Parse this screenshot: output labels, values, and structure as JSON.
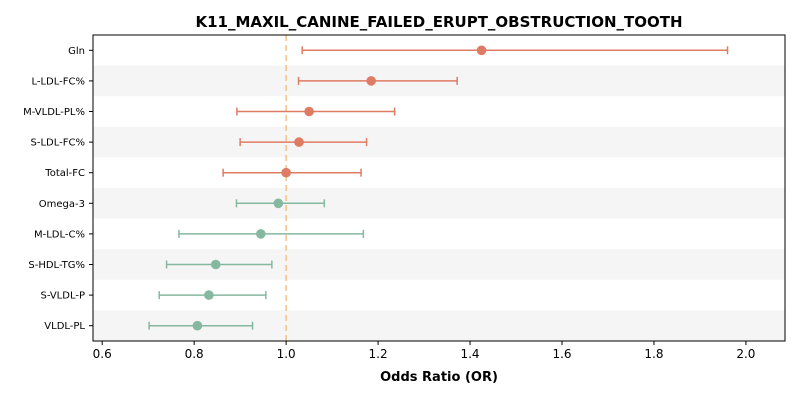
{
  "chart_data": {
    "type": "forest",
    "title": "K11_MAXIL_CANINE_FAILED_ERUPT_OBSTRUCTION_TOOTH",
    "xlabel": "Odds Ratio (OR)",
    "ylabel": "",
    "xlim": [
      0.58,
      2.085
    ],
    "xticks": [
      0.6,
      0.8,
      1.0,
      1.2,
      1.4,
      1.6,
      1.8,
      2.0
    ],
    "xtick_labels": [
      "0.6",
      "0.8",
      "1.0",
      "1.2",
      "1.4",
      "1.6",
      "1.8",
      "2.0"
    ],
    "reference_line": 1.0,
    "alternating_row_shading": true,
    "colors": {
      "risk": "#e07b63",
      "protective": "#86b8a0",
      "reference_line": "#f5c48a",
      "row_shade": "#f5f5f5"
    },
    "rows": [
      {
        "label": "Gln",
        "or": 1.425,
        "lower": 1.035,
        "upper": 1.96,
        "group": "risk"
      },
      {
        "label": "L-LDL-FC%",
        "or": 1.185,
        "lower": 1.027,
        "upper": 1.372,
        "group": "risk"
      },
      {
        "label": "M-VLDL-PL%",
        "or": 1.05,
        "lower": 0.893,
        "upper": 1.236,
        "group": "risk"
      },
      {
        "label": "S-LDL-FC%",
        "or": 1.028,
        "lower": 0.9,
        "upper": 1.175,
        "group": "risk"
      },
      {
        "label": "Total-FC",
        "or": 1.0,
        "lower": 0.863,
        "upper": 1.163,
        "group": "risk"
      },
      {
        "label": "Omega-3",
        "or": 0.983,
        "lower": 0.892,
        "upper": 1.083,
        "group": "protective"
      },
      {
        "label": "M-LDL-C%",
        "or": 0.945,
        "lower": 0.767,
        "upper": 1.168,
        "group": "protective"
      },
      {
        "label": "S-HDL-TG%",
        "or": 0.847,
        "lower": 0.74,
        "upper": 0.969,
        "group": "protective"
      },
      {
        "label": "S-VLDL-P",
        "or": 0.832,
        "lower": 0.724,
        "upper": 0.956,
        "group": "protective"
      },
      {
        "label": "VLDL-PL",
        "or": 0.807,
        "lower": 0.702,
        "upper": 0.927,
        "group": "protective"
      }
    ]
  }
}
